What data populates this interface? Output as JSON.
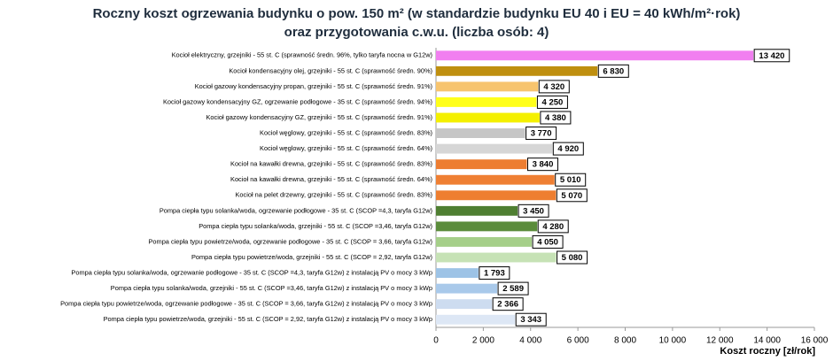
{
  "chart_data": {
    "type": "barh",
    "title": "Roczny koszt ogrzewania budynku  o pow. 150 m²  (w standardzie budynku EU 40 i EU = 40 kWh/m²·rok)",
    "subtitle": "oraz przygotowania c.w.u. (liczba osób: 4)",
    "x_label": "Koszt roczny [zł/rok]",
    "categories": [
      "Kocioł elektryczny,  grzejniki - 55 st. C  (sprawność średn. 96%, tylko taryfa nocna w G12w)",
      "Kocioł kondensacyjny olej,  grzejniki - 55 st. C  (sprawność średn. 90%)",
      "Kocioł gazowy kondensacyjny propan,  grzejniki - 55 st. C  (sprawność średn. 91%)",
      "Kocioł gazowy kondensacyjny GZ, ogrzewanie podłogowe - 35 st. C  (sprawność średn. 94%)",
      "Kocioł gazowy kondensacyjny GZ, grzejniki - 55 st. C  (sprawność średn. 91%)",
      "Kocioł węglowy,  grzejniki - 55 st. C  (sprawność średn. 83%)",
      "Kocioł węglowy,  grzejniki - 55 st. C  (sprawność średn. 64%)",
      "Kocioł na kawałki drewna, grzejniki - 55 st. C  (sprawność średn. 83%)",
      "Kocioł na kawałki drewna, grzejniki - 55 st. C  (sprawność średn. 64%)",
      "Kocioł na pelet drzewny, grzejniki - 55 st. C  (sprawność średn. 83%)",
      "Pompa ciepła typu solanka/woda,  ogrzewanie podłogowe - 35 st. C  (SCOP =4,3, taryfa G12w)",
      "Pompa ciepła typu solanka/woda, grzejniki - 55 st. C  (SCOP =3,46, taryfa G12w)",
      "Pompa ciepła typu powietrze/woda, ogrzewanie podłogowe - 35 st. C  (SCOP = 3,66, taryfa G12w)",
      "Pompa ciepła typu powietrze/woda, grzejniki - 55 st. C  (SCOP = 2,92, taryfa G12w)",
      "Pompa ciepła typu solanka/woda, ogrzewanie podłogowe - 35 st. C  (SCOP =4,3, taryfa G12w) z instalacją PV o mocy 3 kWp",
      "Pompa ciepła typu solanka/woda, grzejniki - 55 st. C  (SCOP =3,46, taryfa G12w) z instalacją PV o mocy 3 kWp",
      "Pompa ciepła typu powietrze/woda, ogrzewanie podłogowe - 35 st. C  (SCOP = 3,66, taryfa G12w) z instalacją PV o mocy 3 kWp",
      "Pompa ciepła typu powietrze/woda, grzejniki - 55 st. C  (SCOP = 2,92, taryfa G12w) z instalacją PV o mocy 3 kWp"
    ],
    "values": [
      13420,
      6830,
      4320,
      4250,
      4380,
      3770,
      4920,
      3840,
      5010,
      5070,
      3450,
      4280,
      4050,
      5080,
      1793,
      2589,
      2366,
      3343
    ],
    "value_labels": [
      "13 420",
      "6 830",
      "4 320",
      "4 250",
      "4 380",
      "3 770",
      "4 920",
      "3 840",
      "5 010",
      "5 070",
      "3 450",
      "4 280",
      "4 050",
      "5 080",
      "1 793",
      "2 589",
      "2 366",
      "3 343"
    ],
    "colors": [
      "#f17ff0",
      "#bf8f0f",
      "#f7c46e",
      "#ffff1a",
      "#f4f000",
      "#c6c6c6",
      "#d6d6d6",
      "#ed7d31",
      "#ef7f33",
      "#ee7e30",
      "#4f7f32",
      "#5b8c3b",
      "#a5cf89",
      "#c6e2b5",
      "#9dc3e6",
      "#a9c9ea",
      "#cddcf0",
      "#dde7f5"
    ],
    "xlim": [
      0,
      16000
    ],
    "xticks": [
      0,
      {
        "value": 2000,
        "label": "2 000"
      },
      {
        "value": 4000,
        "label": "4 000"
      },
      {
        "value": 6000,
        "label": "6 000"
      },
      {
        "value": 8000,
        "label": "8 000"
      },
      {
        "value": 10000,
        "label": "10 000"
      },
      {
        "value": 12000,
        "label": "12 000"
      },
      {
        "value": 14000,
        "label": "14 000"
      },
      {
        "value": 16000,
        "label": "16 000"
      }
    ],
    "grid": false
  }
}
